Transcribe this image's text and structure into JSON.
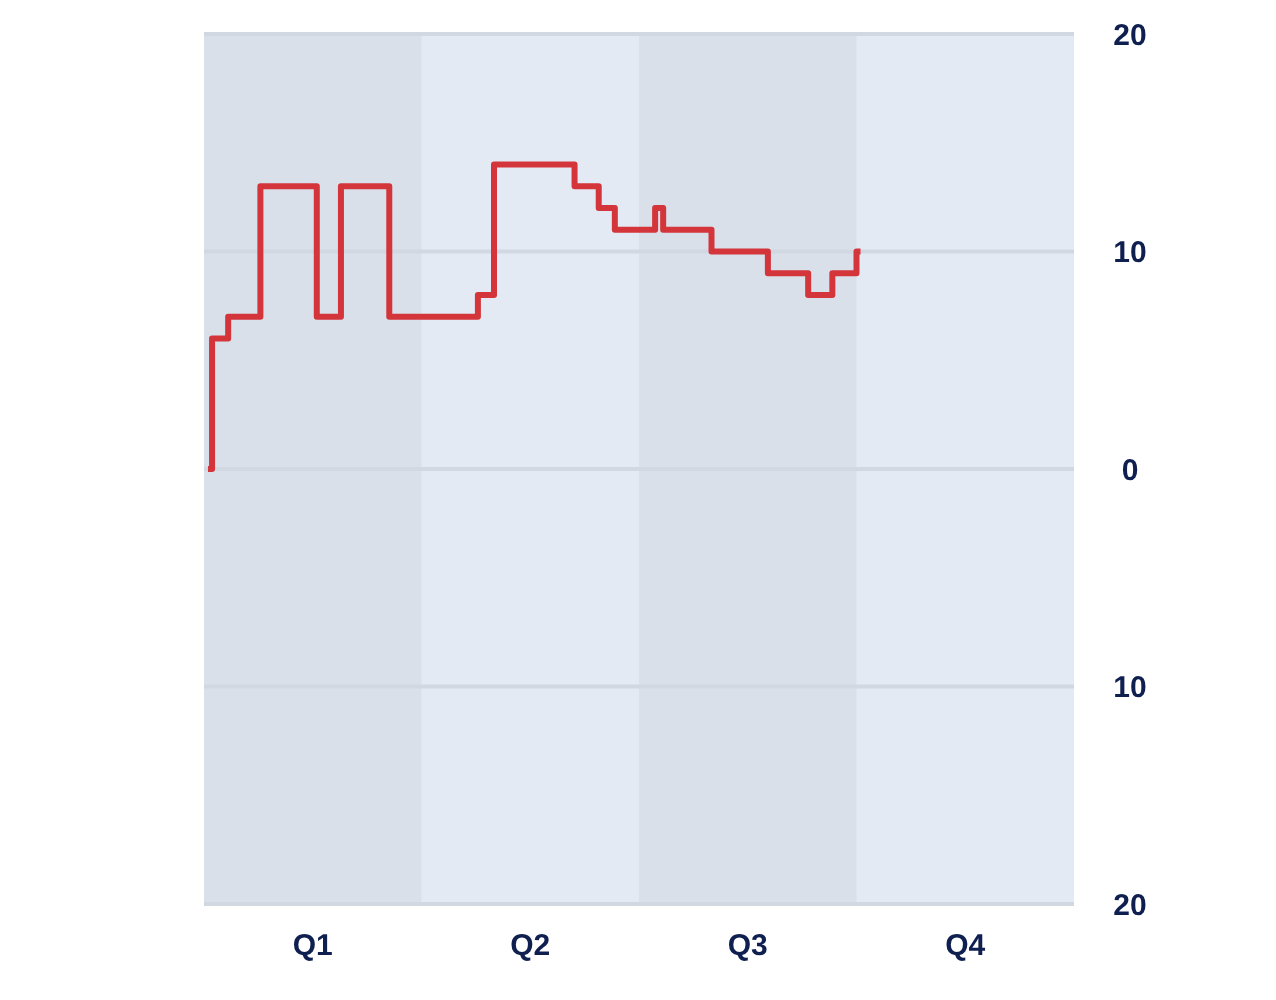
{
  "chart_data": {
    "type": "step",
    "categories": [
      null,
      null,
      null,
      null,
      null,
      null,
      null,
      null,
      null,
      null,
      null,
      null,
      null,
      "Q1",
      null,
      null,
      null,
      null,
      null,
      null,
      null,
      null,
      null,
      null,
      null,
      null,
      null,
      null,
      null,
      null,
      null,
      null,
      null,
      null,
      null,
      null,
      null,
      null,
      null,
      null,
      "Q2",
      null,
      null,
      null,
      null,
      null,
      null,
      null,
      null,
      null,
      null,
      null,
      null,
      null,
      null,
      null,
      null,
      null,
      null,
      null,
      null,
      null,
      null,
      null,
      null,
      null,
      null,
      "Q3",
      null,
      null,
      null,
      null,
      null,
      null,
      null,
      null,
      null,
      null,
      null,
      null,
      null,
      null,
      null,
      null,
      null,
      null,
      null,
      null,
      null,
      null,
      null,
      null,
      null,
      null,
      "Q4",
      null,
      null,
      null,
      null,
      null,
      null,
      null,
      null,
      null,
      null,
      null,
      null,
      null
    ],
    "values": [
      0,
      6,
      6,
      7,
      7,
      7,
      7,
      13,
      13,
      13,
      13,
      13,
      13,
      13,
      7,
      7,
      7,
      13,
      13,
      13,
      13,
      13,
      13,
      7,
      7,
      7,
      7,
      7,
      7,
      7,
      7,
      7,
      7,
      7,
      8,
      8,
      14,
      14,
      14,
      14,
      14,
      14,
      14,
      14,
      14,
      14,
      13,
      13,
      13,
      12,
      12,
      11,
      11,
      11,
      11,
      11,
      12,
      11,
      11,
      11,
      11,
      11,
      11,
      10,
      10,
      10,
      10,
      10,
      10,
      10,
      9,
      9,
      9,
      9,
      9,
      8,
      8,
      8,
      9,
      9,
      9,
      10,
      null,
      null,
      null,
      null,
      null,
      null,
      null,
      null,
      null,
      null,
      null,
      null,
      null,
      null,
      null,
      null,
      null,
      null,
      null,
      null,
      null,
      null,
      null,
      null,
      null,
      null
    ],
    "color": "#d3353b",
    "ylim": [
      -20,
      20
    ],
    "yticks": [
      {
        "value": -20,
        "label": "20"
      },
      {
        "value": -10,
        "label": "10"
      },
      0,
      10,
      20
    ],
    "grid": "y"
  }
}
